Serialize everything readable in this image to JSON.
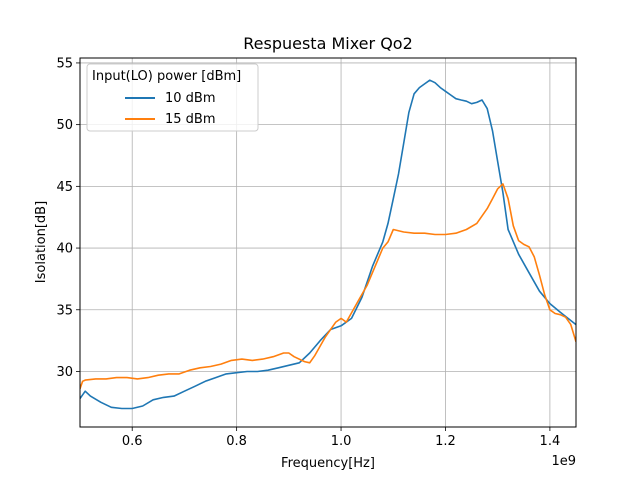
{
  "chart_data": {
    "type": "line",
    "title": "Respuesta Mixer Qo2",
    "xlabel": "Frequency[Hz]",
    "ylabel": "Isolation[dB]",
    "x_offset_label": "1e9",
    "xlim": [
      0.5,
      1.45
    ],
    "ylim": [
      25.5,
      55.4
    ],
    "x_ticks": [
      "0.6",
      "0.8",
      "1.0",
      "1.2",
      "1.4"
    ],
    "y_ticks": [
      "30",
      "35",
      "40",
      "45",
      "50",
      "55"
    ],
    "grid": true,
    "legend": {
      "title": "Input(LO) power [dBm]",
      "position": "top-left"
    },
    "series": [
      {
        "name": "10 dBm",
        "color": "#1f77b4",
        "x": [
          0.5,
          0.51,
          0.52,
          0.54,
          0.56,
          0.58,
          0.6,
          0.62,
          0.64,
          0.66,
          0.68,
          0.7,
          0.72,
          0.74,
          0.76,
          0.78,
          0.8,
          0.82,
          0.84,
          0.86,
          0.88,
          0.9,
          0.92,
          0.94,
          0.96,
          0.98,
          1.0,
          1.02,
          1.04,
          1.06,
          1.08,
          1.09,
          1.1,
          1.11,
          1.12,
          1.13,
          1.14,
          1.15,
          1.16,
          1.17,
          1.18,
          1.19,
          1.2,
          1.21,
          1.22,
          1.23,
          1.24,
          1.25,
          1.26,
          1.27,
          1.28,
          1.29,
          1.3,
          1.31,
          1.32,
          1.34,
          1.36,
          1.38,
          1.4,
          1.42,
          1.45
        ],
        "values": [
          27.8,
          28.4,
          28.0,
          27.5,
          27.1,
          27.0,
          27.0,
          27.2,
          27.7,
          27.9,
          28.0,
          28.4,
          28.8,
          29.2,
          29.5,
          29.8,
          29.9,
          30.0,
          30.0,
          30.1,
          30.3,
          30.5,
          30.7,
          31.5,
          32.5,
          33.4,
          33.7,
          34.3,
          36.0,
          38.5,
          40.5,
          42.0,
          44.0,
          46.0,
          48.5,
          51.0,
          52.5,
          53.0,
          53.3,
          53.6,
          53.4,
          53.0,
          52.7,
          52.4,
          52.1,
          52.0,
          51.9,
          51.7,
          51.8,
          52.0,
          51.3,
          49.5,
          47.0,
          44.5,
          41.5,
          39.5,
          38.0,
          36.5,
          35.5,
          34.8,
          33.8
        ]
      },
      {
        "name": "15 dBm",
        "color": "#ff7f0e",
        "x": [
          0.5,
          0.505,
          0.51,
          0.53,
          0.55,
          0.57,
          0.59,
          0.61,
          0.63,
          0.65,
          0.67,
          0.69,
          0.71,
          0.73,
          0.75,
          0.77,
          0.79,
          0.81,
          0.83,
          0.85,
          0.87,
          0.89,
          0.9,
          0.91,
          0.93,
          0.94,
          0.95,
          0.97,
          0.99,
          1.0,
          1.01,
          1.03,
          1.05,
          1.07,
          1.08,
          1.09,
          1.1,
          1.12,
          1.14,
          1.16,
          1.18,
          1.2,
          1.22,
          1.24,
          1.26,
          1.28,
          1.29,
          1.3,
          1.31,
          1.32,
          1.33,
          1.34,
          1.35,
          1.36,
          1.37,
          1.38,
          1.39,
          1.4,
          1.41,
          1.42,
          1.43,
          1.44,
          1.45
        ],
        "values": [
          28.6,
          29.2,
          29.3,
          29.4,
          29.4,
          29.5,
          29.5,
          29.4,
          29.5,
          29.7,
          29.8,
          29.8,
          30.1,
          30.3,
          30.4,
          30.6,
          30.9,
          31.0,
          30.9,
          31.0,
          31.2,
          31.5,
          31.5,
          31.2,
          30.8,
          30.7,
          31.3,
          32.8,
          34.0,
          34.3,
          34.0,
          35.5,
          37.0,
          39.0,
          40.0,
          40.5,
          41.5,
          41.3,
          41.2,
          41.2,
          41.1,
          41.1,
          41.2,
          41.5,
          42.0,
          43.2,
          44.0,
          44.8,
          45.2,
          44.0,
          41.8,
          40.6,
          40.3,
          40.1,
          39.3,
          37.8,
          36.2,
          35.0,
          34.7,
          34.6,
          34.4,
          33.8,
          32.4
        ]
      }
    ]
  }
}
